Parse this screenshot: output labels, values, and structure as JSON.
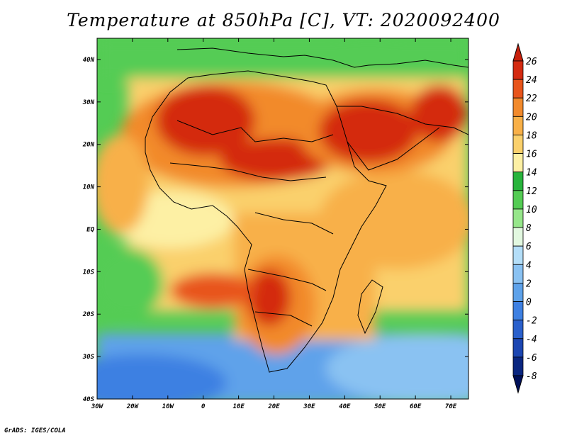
{
  "title": "Temperature at 850hPa [C], VT: 2020092400",
  "credit": "GrADS: IGES/COLA",
  "map": {
    "lon_range": [
      -30,
      75
    ],
    "lat_range": [
      -40,
      45
    ],
    "lon_ticks": [
      "30W",
      "20W",
      "10W",
      "0",
      "10E",
      "20E",
      "30E",
      "40E",
      "50E",
      "60E",
      "70E"
    ],
    "lon_values": [
      -30,
      -20,
      -10,
      0,
      10,
      20,
      30,
      40,
      50,
      60,
      70
    ],
    "lat_ticks": [
      "40N",
      "30N",
      "20N",
      "10N",
      "EQ",
      "10S",
      "20S",
      "30S",
      "40S"
    ],
    "lat_values": [
      40,
      30,
      20,
      10,
      0,
      -10,
      -20,
      -30,
      -40
    ]
  },
  "colorbar": {
    "labels": [
      "26",
      "24",
      "22",
      "20",
      "18",
      "16",
      "14",
      "12",
      "10",
      "8",
      "6",
      "4",
      "2",
      "0",
      "-2",
      "-4",
      "-6",
      "-8"
    ],
    "colors": [
      "#d42a10",
      "#e8551c",
      "#f28a2c",
      "#f8b048",
      "#fad06c",
      "#fdf0a4",
      "#28b43c",
      "#54cc54",
      "#96e68a",
      "#e2f8e0",
      "#b4def8",
      "#8ac2f2",
      "#5ea2ea",
      "#3e80e2",
      "#2a60cc",
      "#1c46b2",
      "#0a2680",
      "#00105a"
    ],
    "top_arrow_color": "#c8200c",
    "bottom_arrow_color": "#dcdcff"
  },
  "field_colors": {
    "hot": "#d42a10",
    "warm": "#f28a2c",
    "mild": "#f8b048",
    "cool": "#fad06c",
    "pale": "#fdf0a4",
    "green": "#54cc54",
    "lightgreen": "#96e68a",
    "sea_blue": "#5ea2ea",
    "deep_blue": "#2a60cc"
  }
}
